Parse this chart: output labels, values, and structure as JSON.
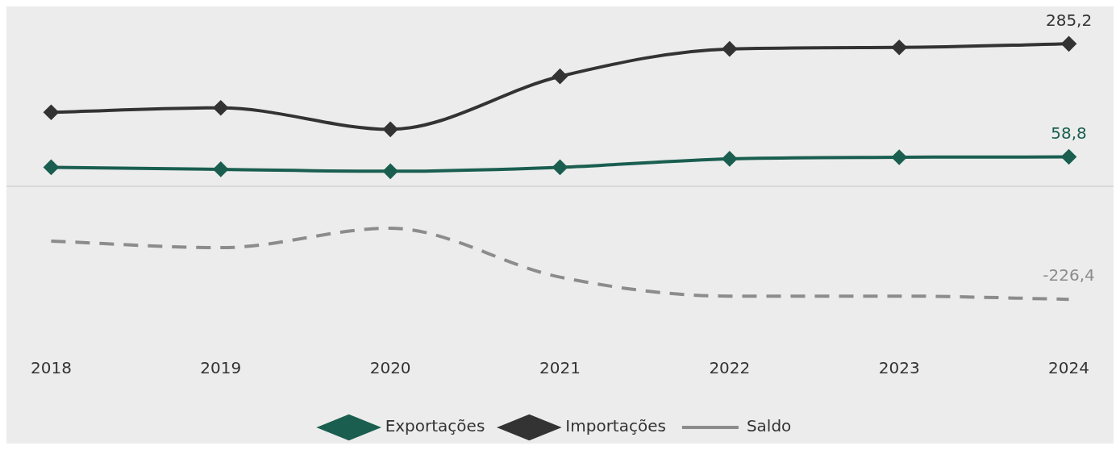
{
  "chart_data": {
    "type": "line",
    "categories": [
      "2018",
      "2019",
      "2020",
      "2021",
      "2022",
      "2023",
      "2024"
    ],
    "series": [
      {
        "name": "Exportações",
        "color": "#1a5e50",
        "marker": "diamond",
        "line_style": "solid",
        "values": [
          38,
          34,
          30,
          38,
          55,
          58,
          58.8
        ],
        "value_labels": [
          null,
          null,
          null,
          null,
          null,
          null,
          "58,8"
        ]
      },
      {
        "name": "Importações",
        "color": "#333333",
        "marker": "diamond",
        "line_style": "solid",
        "values": [
          148,
          157,
          114,
          220,
          275,
          278,
          285.2
        ],
        "value_labels": [
          null,
          null,
          null,
          null,
          null,
          null,
          "285,2"
        ]
      },
      {
        "name": "Saldo",
        "color": "#8c8c8c",
        "marker": "none",
        "line_style": "dashed",
        "values": [
          -110,
          -123,
          -84,
          -182,
          -220,
          -220,
          -226.4
        ],
        "value_labels": [
          null,
          null,
          null,
          null,
          null,
          null,
          "-226,4"
        ]
      }
    ],
    "grid": false,
    "legend": "bottom"
  }
}
